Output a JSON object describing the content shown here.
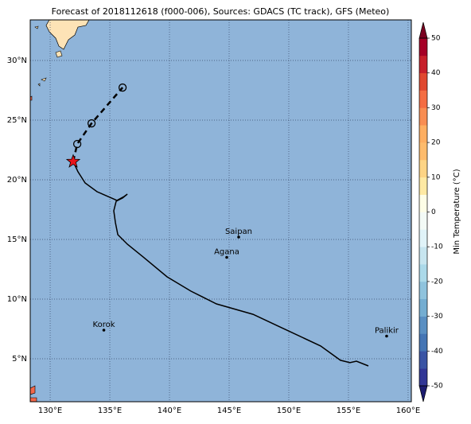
{
  "map": {
    "title": "Forecast of 2018112618 (f000-006), Sources: GDACS (TC track), GFS (Meteo)",
    "lonlim": [
      128.33,
      160.27
    ],
    "latlim": [
      1.4,
      33.4
    ],
    "lonticks": [
      {
        "value": 130,
        "label": "130°E"
      },
      {
        "value": 135,
        "label": "135°E"
      },
      {
        "value": 140,
        "label": "140°E"
      },
      {
        "value": 145,
        "label": "145°E"
      },
      {
        "value": 150,
        "label": "150°E"
      },
      {
        "value": 155,
        "label": "155°E"
      },
      {
        "value": 160,
        "label": "160°E"
      }
    ],
    "latticks": [
      {
        "value": 5,
        "label": "5°N"
      },
      {
        "value": 10,
        "label": "10°N"
      },
      {
        "value": 15,
        "label": "15°N"
      },
      {
        "value": 20,
        "label": "20°N"
      },
      {
        "value": 25,
        "label": "25°N"
      },
      {
        "value": 30,
        "label": "30°N"
      }
    ],
    "grid": true,
    "ocean_color": "#8fb4d9",
    "track": {
      "color": "#000000",
      "lon": [
        156.67,
        155.67,
        155.13,
        154.33,
        152.67,
        149.13,
        147.0,
        143.93,
        141.8,
        139.8,
        137.8,
        136.47,
        135.67,
        135.47,
        135.33,
        135.53,
        136.07,
        136.47,
        136.2,
        135.6,
        133.93,
        132.93,
        132.33,
        131.93
      ],
      "lat": [
        4.4,
        4.8,
        4.67,
        4.87,
        6.07,
        7.73,
        8.73,
        9.6,
        10.67,
        11.87,
        13.53,
        14.6,
        15.4,
        16.4,
        17.4,
        18.2,
        18.47,
        18.8,
        18.6,
        18.27,
        19.0,
        19.73,
        20.67,
        21.53
      ]
    },
    "forecast": {
      "lon": [
        131.93,
        132.27,
        133.47,
        136.07
      ],
      "lat": [
        21.53,
        23.0,
        24.73,
        27.73
      ]
    },
    "current": {
      "lon": 131.93,
      "lat": 21.53,
      "color": "#e8141a"
    },
    "places": [
      {
        "name": "Saipan",
        "lon": 145.8,
        "lat": 15.2
      },
      {
        "name": "Agana",
        "lon": 144.8,
        "lat": 13.5
      },
      {
        "name": "Korok",
        "lon": 134.5,
        "lat": 7.4
      },
      {
        "name": "Palikir",
        "lon": 158.2,
        "lat": 6.9
      }
    ],
    "colorbar": {
      "label": "Min Temperature (°C)",
      "lim": [
        -50,
        50
      ],
      "ticks": [
        -50,
        -40,
        -30,
        -20,
        -10,
        0,
        10,
        20,
        30,
        40,
        50
      ],
      "colors": [
        "#313695",
        "#3a54a4",
        "#4575b4",
        "#5a8fc2",
        "#74add1",
        "#8fc3dd",
        "#abd9e9",
        "#c7e5ef",
        "#e0f3f8",
        "#f3faf6",
        "#fdfde6",
        "#fee9a3",
        "#fdd485",
        "#fdbb6c",
        "#fdae61",
        "#f88d52",
        "#f46d43",
        "#e0482f",
        "#c7202b",
        "#a50026"
      ],
      "under_color": "#1c1c70",
      "over_color": "#7a0020"
    }
  }
}
